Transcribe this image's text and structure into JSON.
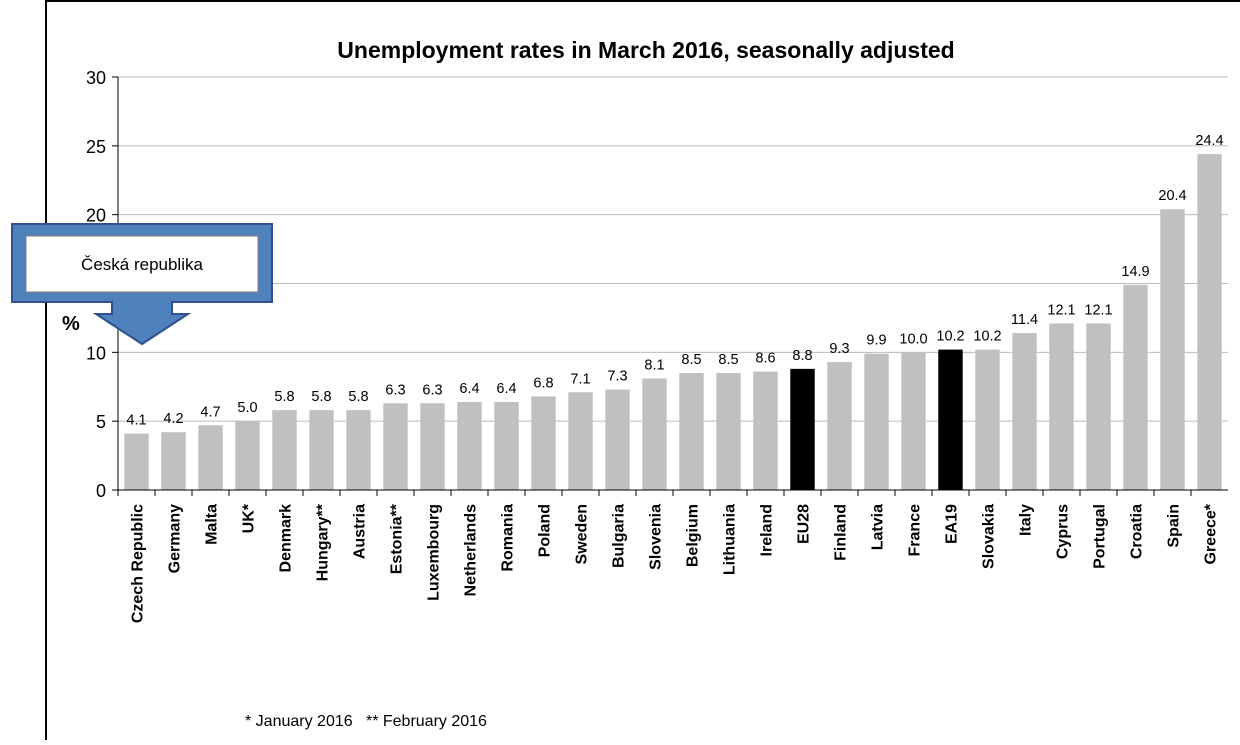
{
  "chart_data": {
    "type": "bar",
    "title": "Unemployment rates in March 2016, seasonally adjusted",
    "ylabel": "%",
    "ylim": [
      0,
      30
    ],
    "yticks": [
      0,
      5,
      10,
      15,
      20,
      25,
      30
    ],
    "grid": true,
    "categories": [
      "Czech Republic",
      "Germany",
      "Malta",
      "UK*",
      "Denmark",
      "Hungary**",
      "Austria",
      "Estonia**",
      "Luxembourg",
      "Netherlands",
      "Romania",
      "Poland",
      "Sweden",
      "Bulgaria",
      "Slovenia",
      "Belgium",
      "Lithuania",
      "Ireland",
      "EU28",
      "Finland",
      "Latvia",
      "France",
      "EA19",
      "Slovakia",
      "Italy",
      "Cyprus",
      "Portugal",
      "Croatia",
      "Spain",
      "Greece*"
    ],
    "values": [
      4.1,
      4.2,
      4.7,
      5.0,
      5.8,
      5.8,
      5.8,
      6.3,
      6.3,
      6.4,
      6.4,
      6.8,
      7.1,
      7.3,
      8.1,
      8.5,
      8.5,
      8.6,
      8.8,
      9.3,
      9.9,
      10.0,
      10.2,
      10.2,
      11.4,
      12.1,
      12.1,
      14.9,
      20.4,
      24.4
    ],
    "value_labels": [
      "4.1",
      "4.2",
      "4.7",
      "5.0",
      "5.8",
      "5.8",
      "5.8",
      "6.3",
      "6.3",
      "6.4",
      "6.4",
      "6.8",
      "7.1",
      "7.3",
      "8.1",
      "8.5",
      "8.5",
      "8.6",
      "8.8",
      "9.3",
      "9.9",
      "10.0",
      "10.2",
      "10.2",
      "11.4",
      "12.1",
      "12.1",
      "14.9",
      "20.4",
      "24.4"
    ],
    "highlighted": [
      "EU28",
      "EA19"
    ],
    "colors": {
      "bar": "#c0c0c0",
      "highlight": "#000000",
      "grid": "#bbbbbb"
    },
    "footnote": "* January 2016   ** February 2016"
  },
  "callout": {
    "text": "Česká republika",
    "colors": {
      "fill": "#4f81bd",
      "stroke": "#2f528f",
      "box": "#ffffff"
    }
  }
}
